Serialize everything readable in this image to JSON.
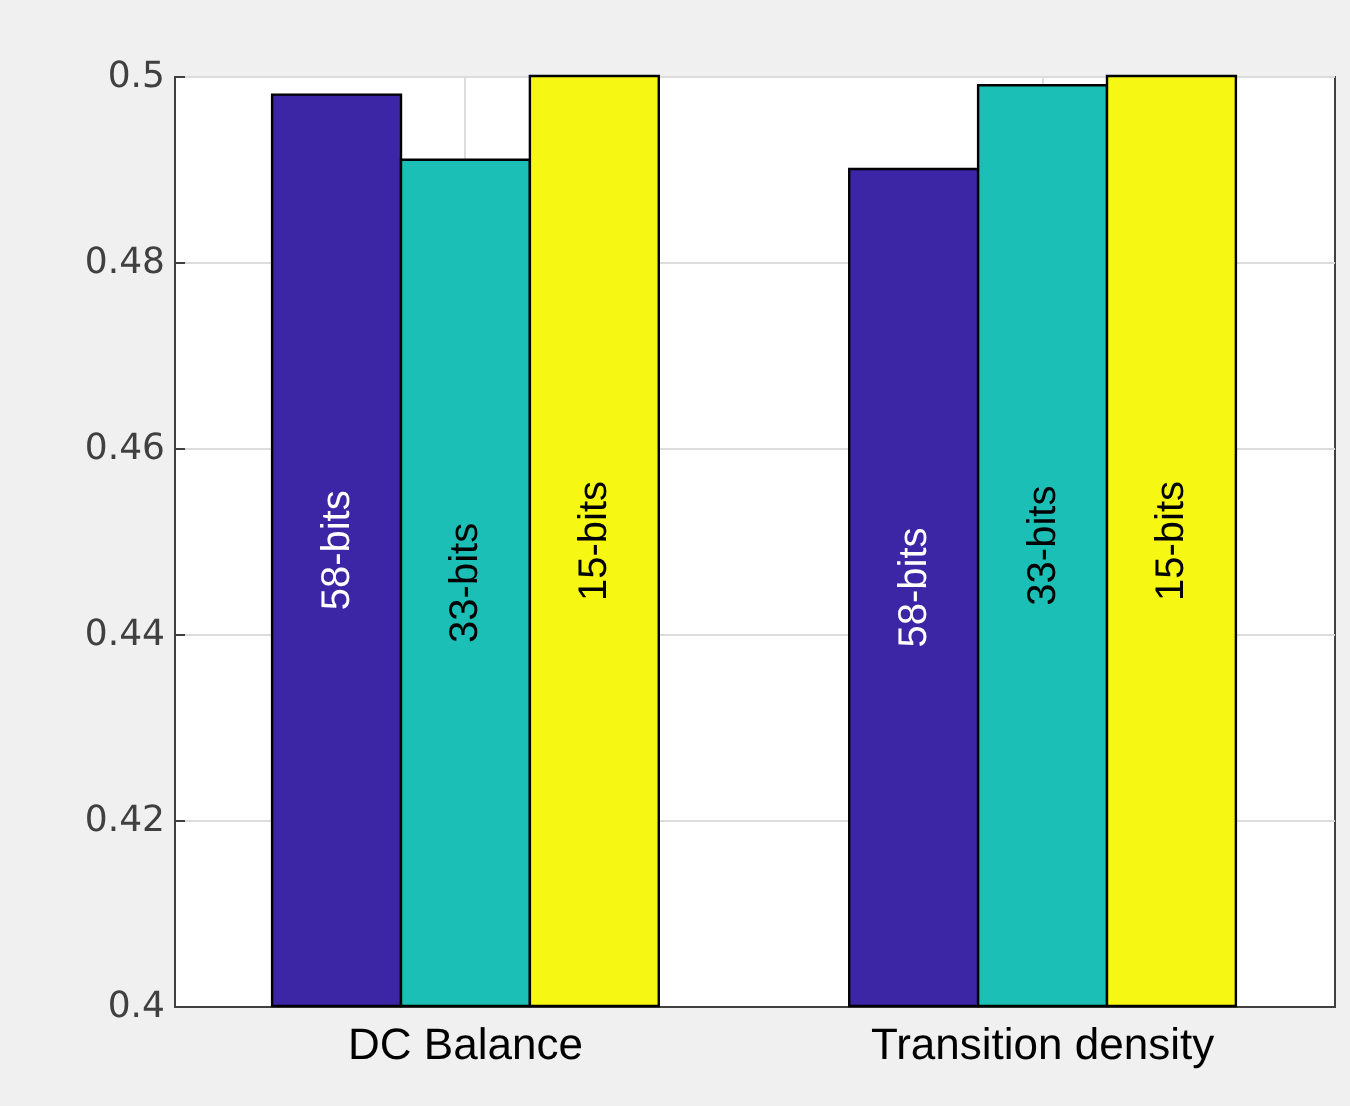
{
  "chart_data": {
    "type": "bar",
    "categories": [
      "DC Balance",
      "Transition density"
    ],
    "series": [
      {
        "name": "58-bits",
        "color": "#3c26a6",
        "values": [
          0.498,
          0.49
        ]
      },
      {
        "name": "33-bits",
        "color": "#1bbfb5",
        "values": [
          0.491,
          0.499
        ]
      },
      {
        "name": "15-bits",
        "color": "#f7f714",
        "values": [
          0.5,
          0.5
        ]
      }
    ],
    "ylim": [
      0.4,
      0.5
    ],
    "yticks": [
      0.4,
      0.42,
      0.44,
      0.46,
      0.48,
      0.5
    ],
    "grid": true,
    "legend": false
  }
}
